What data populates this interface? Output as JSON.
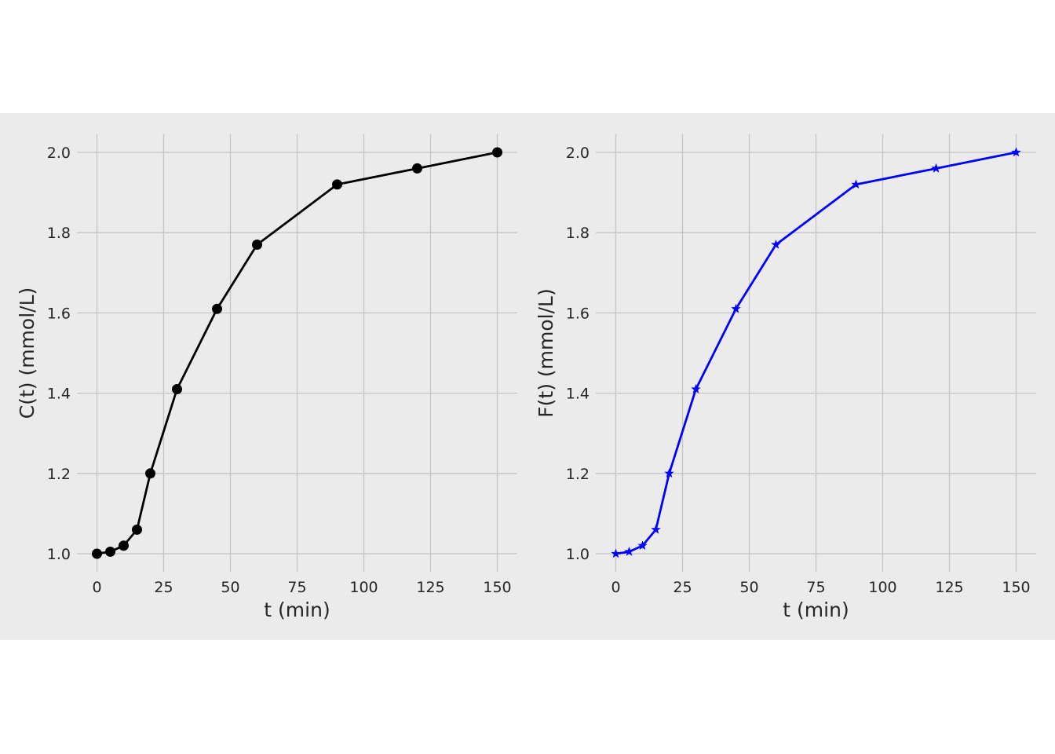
{
  "chart_data": [
    {
      "type": "line",
      "xlabel": "t (min)",
      "ylabel": "C(t) (mmol/L)",
      "x": [
        0,
        5,
        10,
        15,
        20,
        30,
        45,
        60,
        90,
        120,
        150
      ],
      "series": [
        {
          "values": [
            1.0,
            1.005,
            1.02,
            1.06,
            1.2,
            1.41,
            1.61,
            1.77,
            1.92,
            1.96,
            2.0
          ],
          "color": "#000000",
          "marker": "circle"
        }
      ],
      "xlim": [
        -7.5,
        157.5
      ],
      "ylim": [
        0.955,
        2.045
      ],
      "xticks": [
        0,
        25,
        50,
        75,
        100,
        125,
        150
      ],
      "xtick_labels": [
        "0",
        "25",
        "50",
        "75",
        "100",
        "125",
        "150"
      ],
      "yticks": [
        1.0,
        1.2,
        1.4,
        1.6,
        1.8,
        2.0
      ],
      "ytick_labels": [
        "1.0",
        "1.2",
        "1.4",
        "1.6",
        "1.8",
        "2.0"
      ],
      "grid": true,
      "background": "#ebebeb"
    },
    {
      "type": "line",
      "xlabel": "t (min)",
      "ylabel": "F(t) (mmol/L)",
      "x": [
        0,
        5,
        10,
        15,
        20,
        30,
        45,
        60,
        90,
        120,
        150
      ],
      "series": [
        {
          "values": [
            1.0,
            1.005,
            1.02,
            1.06,
            1.2,
            1.41,
            1.61,
            1.77,
            1.92,
            1.96,
            2.0
          ],
          "color": "#0000ff",
          "marker": "star"
        }
      ],
      "xlim": [
        -7.5,
        157.5
      ],
      "ylim": [
        0.955,
        2.045
      ],
      "xticks": [
        0,
        25,
        50,
        75,
        100,
        125,
        150
      ],
      "xtick_labels": [
        "0",
        "25",
        "50",
        "75",
        "100",
        "125",
        "150"
      ],
      "yticks": [
        1.0,
        1.2,
        1.4,
        1.6,
        1.8,
        2.0
      ],
      "ytick_labels": [
        "1.0",
        "1.2",
        "1.4",
        "1.6",
        "1.8",
        "2.0"
      ],
      "grid": true,
      "background": "#ebebeb"
    }
  ]
}
